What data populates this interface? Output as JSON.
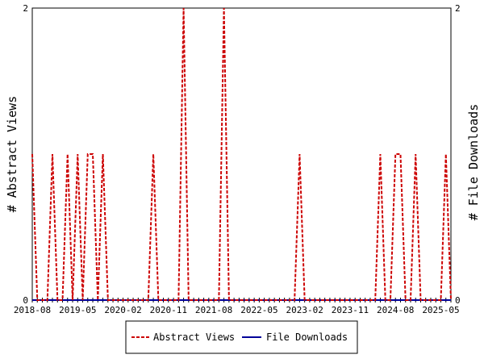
{
  "chart_data": {
    "type": "line",
    "ylabel_left": "# Abstract Views",
    "ylabel_right": "# File Downloads",
    "xlim": [
      "2018-08",
      "2025-07"
    ],
    "ylim_left": [
      0,
      2
    ],
    "ylim_right": [
      0,
      2
    ],
    "y_ticks_left": [
      "0",
      "2"
    ],
    "y_ticks_right": [
      "0",
      "2"
    ],
    "x_tick_labels": [
      "2018-08",
      "2019-05",
      "2020-02",
      "2020-11",
      "2021-08",
      "2022-05",
      "2023-02",
      "2023-11",
      "2024-08",
      "2025-05"
    ],
    "grid": false,
    "legend_position": "bottom",
    "series": [
      {
        "name": "Abstract Views",
        "axis": "left",
        "color": "#cc0000",
        "style": "dashed",
        "points": [
          [
            "2018-08",
            1
          ],
          [
            "2018-09",
            0
          ],
          [
            "2018-10",
            0
          ],
          [
            "2018-11",
            0
          ],
          [
            "2018-12",
            1
          ],
          [
            "2019-01",
            0
          ],
          [
            "2019-02",
            0
          ],
          [
            "2019-03",
            1
          ],
          [
            "2019-04",
            0
          ],
          [
            "2019-05",
            1
          ],
          [
            "2019-06",
            0
          ],
          [
            "2019-07",
            1
          ],
          [
            "2019-08",
            1
          ],
          [
            "2019-09",
            0
          ],
          [
            "2019-10",
            1
          ],
          [
            "2019-11",
            0
          ],
          [
            "2019-12",
            0
          ],
          [
            "2020-01",
            0
          ],
          [
            "2020-02",
            0
          ],
          [
            "2020-03",
            0
          ],
          [
            "2020-04",
            0
          ],
          [
            "2020-05",
            0
          ],
          [
            "2020-06",
            0
          ],
          [
            "2020-07",
            0
          ],
          [
            "2020-08",
            1
          ],
          [
            "2020-09",
            0
          ],
          [
            "2020-10",
            0
          ],
          [
            "2020-11",
            0
          ],
          [
            "2020-12",
            0
          ],
          [
            "2021-01",
            0
          ],
          [
            "2021-02",
            2
          ],
          [
            "2021-03",
            0
          ],
          [
            "2021-04",
            0
          ],
          [
            "2021-05",
            0
          ],
          [
            "2021-06",
            0
          ],
          [
            "2021-07",
            0
          ],
          [
            "2021-08",
            0
          ],
          [
            "2021-09",
            0
          ],
          [
            "2021-10",
            2
          ],
          [
            "2021-11",
            0
          ],
          [
            "2021-12",
            0
          ],
          [
            "2022-01",
            0
          ],
          [
            "2022-02",
            0
          ],
          [
            "2022-03",
            0
          ],
          [
            "2022-04",
            0
          ],
          [
            "2022-05",
            0
          ],
          [
            "2022-06",
            0
          ],
          [
            "2022-07",
            0
          ],
          [
            "2022-08",
            0
          ],
          [
            "2022-09",
            0
          ],
          [
            "2022-10",
            0
          ],
          [
            "2022-11",
            0
          ],
          [
            "2022-12",
            0
          ],
          [
            "2023-01",
            1
          ],
          [
            "2023-02",
            0
          ],
          [
            "2023-03",
            0
          ],
          [
            "2023-04",
            0
          ],
          [
            "2023-05",
            0
          ],
          [
            "2023-06",
            0
          ],
          [
            "2023-07",
            0
          ],
          [
            "2023-08",
            0
          ],
          [
            "2023-09",
            0
          ],
          [
            "2023-10",
            0
          ],
          [
            "2023-11",
            0
          ],
          [
            "2023-12",
            0
          ],
          [
            "2024-01",
            0
          ],
          [
            "2024-02",
            0
          ],
          [
            "2024-03",
            0
          ],
          [
            "2024-04",
            0
          ],
          [
            "2024-05",
            1
          ],
          [
            "2024-06",
            0
          ],
          [
            "2024-07",
            0
          ],
          [
            "2024-08",
            1
          ],
          [
            "2024-09",
            1
          ],
          [
            "2024-10",
            0
          ],
          [
            "2024-11",
            0
          ],
          [
            "2024-12",
            1
          ],
          [
            "2025-01",
            0
          ],
          [
            "2025-02",
            0
          ],
          [
            "2025-03",
            0
          ],
          [
            "2025-04",
            0
          ],
          [
            "2025-05",
            0
          ],
          [
            "2025-06",
            1
          ],
          [
            "2025-07",
            0
          ]
        ]
      },
      {
        "name": "File Downloads",
        "axis": "right",
        "color": "#000099",
        "style": "solid",
        "points": [
          [
            "2018-08",
            0
          ],
          [
            "2025-07",
            0
          ]
        ]
      }
    ]
  }
}
